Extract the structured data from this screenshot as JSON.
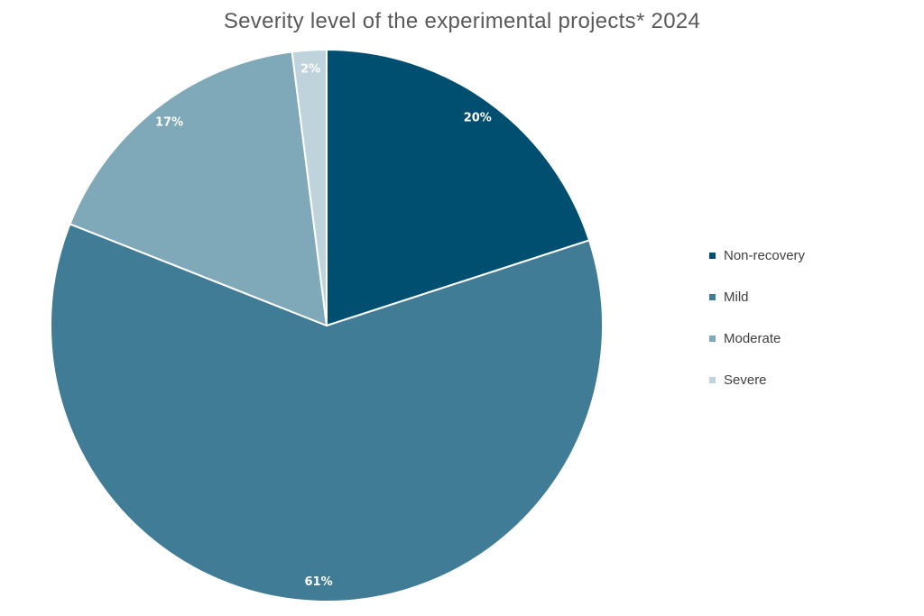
{
  "chart_data": {
    "type": "pie",
    "title": "Severity level of the experimental projects* 2024",
    "categories": [
      "Non-recovery",
      "Mild",
      "Moderate",
      "Severe"
    ],
    "values": [
      20,
      61,
      17,
      2
    ],
    "value_labels": [
      "20%",
      "61%",
      "17%",
      "2%"
    ],
    "colors": [
      "#004f71",
      "#417c96",
      "#7fa8b9",
      "#bfd3dc"
    ],
    "start_angle": "12 o'clock",
    "direction": "clockwise",
    "legend_position": "right"
  }
}
